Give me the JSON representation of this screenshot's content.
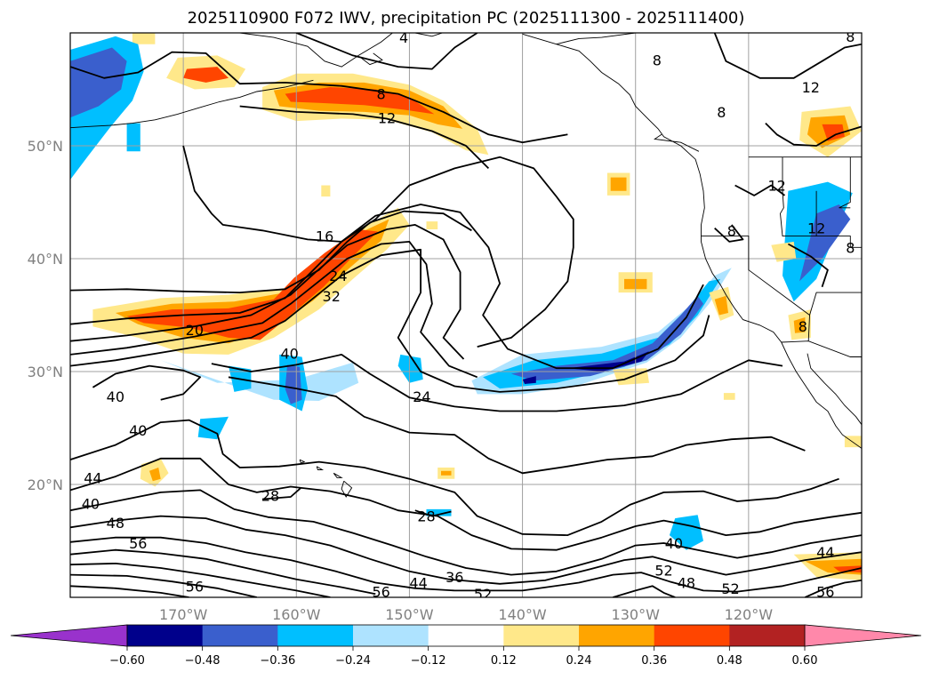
{
  "title": "2025110900 F072 IWV, precipitation PC (2025111300 - 2025111400)",
  "map": {
    "lon_range": [
      -180,
      -110
    ],
    "lat_range": [
      10,
      60
    ],
    "lon_ticks": [
      -170,
      -160,
      -150,
      -140,
      -130,
      -120
    ],
    "lat_ticks": [
      20,
      30,
      40,
      50
    ],
    "lon_tick_labels": [
      "170°W",
      "160°W",
      "150°W",
      "140°W",
      "130°W",
      "120°W"
    ],
    "lat_tick_labels": [
      "20°N",
      "30°N",
      "40°N",
      "50°N"
    ],
    "grid": true
  },
  "iwv_contour_labels": [
    {
      "text": "4",
      "lon": -150.5,
      "lat": 59.6
    },
    {
      "text": "8",
      "lon": -152.5,
      "lat": 54.6
    },
    {
      "text": "12",
      "lon": -152.0,
      "lat": 52.5
    },
    {
      "text": "16",
      "lon": -157.5,
      "lat": 42.0
    },
    {
      "text": "24",
      "lon": -156.3,
      "lat": 38.5
    },
    {
      "text": "32",
      "lon": -156.9,
      "lat": 36.7
    },
    {
      "text": "20",
      "lon": -169.0,
      "lat": 33.7
    },
    {
      "text": "40",
      "lon": -160.6,
      "lat": 31.6
    },
    {
      "text": "24",
      "lon": -148.9,
      "lat": 27.8
    },
    {
      "text": "40",
      "lon": -176.0,
      "lat": 27.8
    },
    {
      "text": "40",
      "lon": -174.0,
      "lat": 24.8
    },
    {
      "text": "44",
      "lon": -178.0,
      "lat": 20.6
    },
    {
      "text": "40",
      "lon": -178.2,
      "lat": 18.3
    },
    {
      "text": "48",
      "lon": -176.0,
      "lat": 16.6
    },
    {
      "text": "56",
      "lon": -174.0,
      "lat": 14.8
    },
    {
      "text": "28",
      "lon": -162.3,
      "lat": 19.0
    },
    {
      "text": "28",
      "lon": -148.5,
      "lat": 17.2
    },
    {
      "text": "56",
      "lon": -169.0,
      "lat": 11.0
    },
    {
      "text": "56",
      "lon": -152.5,
      "lat": 10.5
    },
    {
      "text": "44",
      "lon": -149.2,
      "lat": 11.3
    },
    {
      "text": "36",
      "lon": -146.0,
      "lat": 11.8
    },
    {
      "text": "52",
      "lon": -143.5,
      "lat": 10.3
    },
    {
      "text": "40",
      "lon": -126.6,
      "lat": 14.8
    },
    {
      "text": "52",
      "lon": -127.5,
      "lat": 12.4
    },
    {
      "text": "48",
      "lon": -125.5,
      "lat": 11.3
    },
    {
      "text": "52",
      "lon": -121.6,
      "lat": 10.8
    },
    {
      "text": "44",
      "lon": -113.2,
      "lat": 14.0
    },
    {
      "text": "56",
      "lon": -113.2,
      "lat": 10.5
    },
    {
      "text": "12",
      "lon": -114.5,
      "lat": 55.2
    },
    {
      "text": "8",
      "lon": -128.1,
      "lat": 57.6
    },
    {
      "text": "8",
      "lon": -122.4,
      "lat": 53.0
    },
    {
      "text": "8",
      "lon": -111.0,
      "lat": 59.7
    },
    {
      "text": "12",
      "lon": -117.5,
      "lat": 46.5
    },
    {
      "text": "12",
      "lon": -114.0,
      "lat": 42.7
    },
    {
      "text": "8",
      "lon": -111.0,
      "lat": 41.0
    },
    {
      "text": "8",
      "lon": -121.5,
      "lat": 42.5
    },
    {
      "text": "8",
      "lon": -115.2,
      "lat": 34.0
    }
  ],
  "colorbar": {
    "levels": [
      -0.6,
      -0.48,
      -0.36,
      -0.24,
      -0.12,
      0.12,
      0.24,
      0.36,
      0.48,
      0.6
    ],
    "tick_labels": [
      "−0.60",
      "−0.48",
      "−0.36",
      "−0.24",
      "−0.12",
      "0.12",
      "0.24",
      "0.36",
      "0.48",
      "0.60"
    ],
    "colors": [
      "#9932cc",
      "#00008b",
      "#3a5fcd",
      "#00bfff",
      "#aee3ff",
      "#ffffff",
      "#ffe88a",
      "#ffa500",
      "#ff4500",
      "#b22222",
      "#ff88aa"
    ],
    "extend": "both"
  }
}
